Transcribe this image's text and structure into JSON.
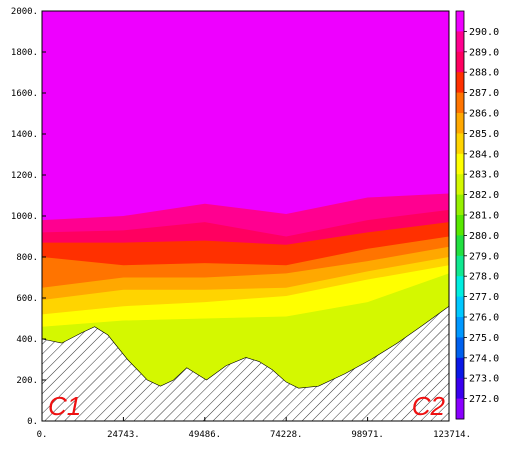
{
  "chart_data": {
    "type": "heatmap",
    "title": "",
    "xlabel": "",
    "ylabel": "",
    "xlim": [
      0,
      123714
    ],
    "ylim": [
      0,
      2000
    ],
    "x_ticks": [
      "0.",
      "24743.",
      "49486.",
      "74228.",
      "98971.",
      "123714."
    ],
    "y_ticks": [
      "0.",
      "200.",
      "400.",
      "600.",
      "800.",
      "1000.",
      "1200.",
      "1400.",
      "1600.",
      "1800.",
      "2000."
    ],
    "section_labels": {
      "start": "C1",
      "end": "C2"
    },
    "legend": {
      "placement": "right",
      "levels": [
        "272.0",
        "273.0",
        "274.0",
        "275.0",
        "276.0",
        "277.0",
        "278.0",
        "279.0",
        "280.0",
        "281.0",
        "282.0",
        "283.0",
        "284.0",
        "285.0",
        "286.0",
        "287.0",
        "288.0",
        "289.0",
        "290.0"
      ],
      "colors": [
        "#8a00ff",
        "#3a00ee",
        "#0a18e6",
        "#0060ee",
        "#0098ff",
        "#00c8ff",
        "#00eee0",
        "#10e890",
        "#22e040",
        "#58e800",
        "#96f000",
        "#d4f800",
        "#ffff00",
        "#ffd400",
        "#ffa800",
        "#ff7400",
        "#ff3000",
        "#ff0060",
        "#ff0090",
        "#ee00ff"
      ]
    },
    "isotherm_heights": [
      {
        "level": "289.0",
        "x": [
          0,
          24743,
          49486,
          74228,
          98971,
          123714
        ],
        "y": [
          980,
          1000,
          1060,
          1010,
          1090,
          1110
        ]
      },
      {
        "level": "288.0",
        "x": [
          0,
          24743,
          49486,
          74228,
          98971,
          123714
        ],
        "y": [
          920,
          930,
          970,
          900,
          980,
          1030
        ]
      },
      {
        "level": "287.0",
        "x": [
          0,
          24743,
          49486,
          74228,
          98971,
          123714
        ],
        "y": [
          870,
          870,
          880,
          860,
          920,
          970
        ]
      },
      {
        "level": "286.0",
        "x": [
          0,
          24743,
          49486,
          74228,
          98971,
          123714
        ],
        "y": [
          800,
          760,
          770,
          760,
          840,
          900
        ]
      },
      {
        "level": "285.0",
        "x": [
          0,
          24743,
          49486,
          74228,
          98971,
          123714
        ],
        "y": [
          650,
          700,
          700,
          720,
          780,
          850
        ]
      },
      {
        "level": "284.0",
        "x": [
          0,
          24743,
          49486,
          74228,
          98971,
          123714
        ],
        "y": [
          590,
          640,
          640,
          650,
          730,
          800
        ]
      },
      {
        "level": "283.0",
        "x": [
          0,
          24743,
          49486,
          74228,
          98971,
          123714
        ],
        "y": [
          520,
          560,
          580,
          610,
          690,
          760
        ]
      },
      {
        "level": "282.0",
        "x": [
          0,
          24743,
          49486,
          74228,
          98971,
          123714
        ],
        "y": [
          460,
          490,
          500,
          510,
          580,
          720
        ]
      }
    ],
    "terrain_height": {
      "x": [
        0,
        6000,
        12000,
        16000,
        20000,
        26000,
        32000,
        36000,
        40000,
        44000,
        50000,
        56000,
        62000,
        66000,
        70000,
        74228,
        78000,
        84000,
        92000,
        100000,
        108000,
        116000,
        123714
      ],
      "y": [
        400,
        380,
        430,
        460,
        420,
        300,
        200,
        170,
        200,
        260,
        200,
        270,
        310,
        290,
        250,
        190,
        160,
        170,
        230,
        300,
        380,
        470,
        560
      ]
    }
  }
}
